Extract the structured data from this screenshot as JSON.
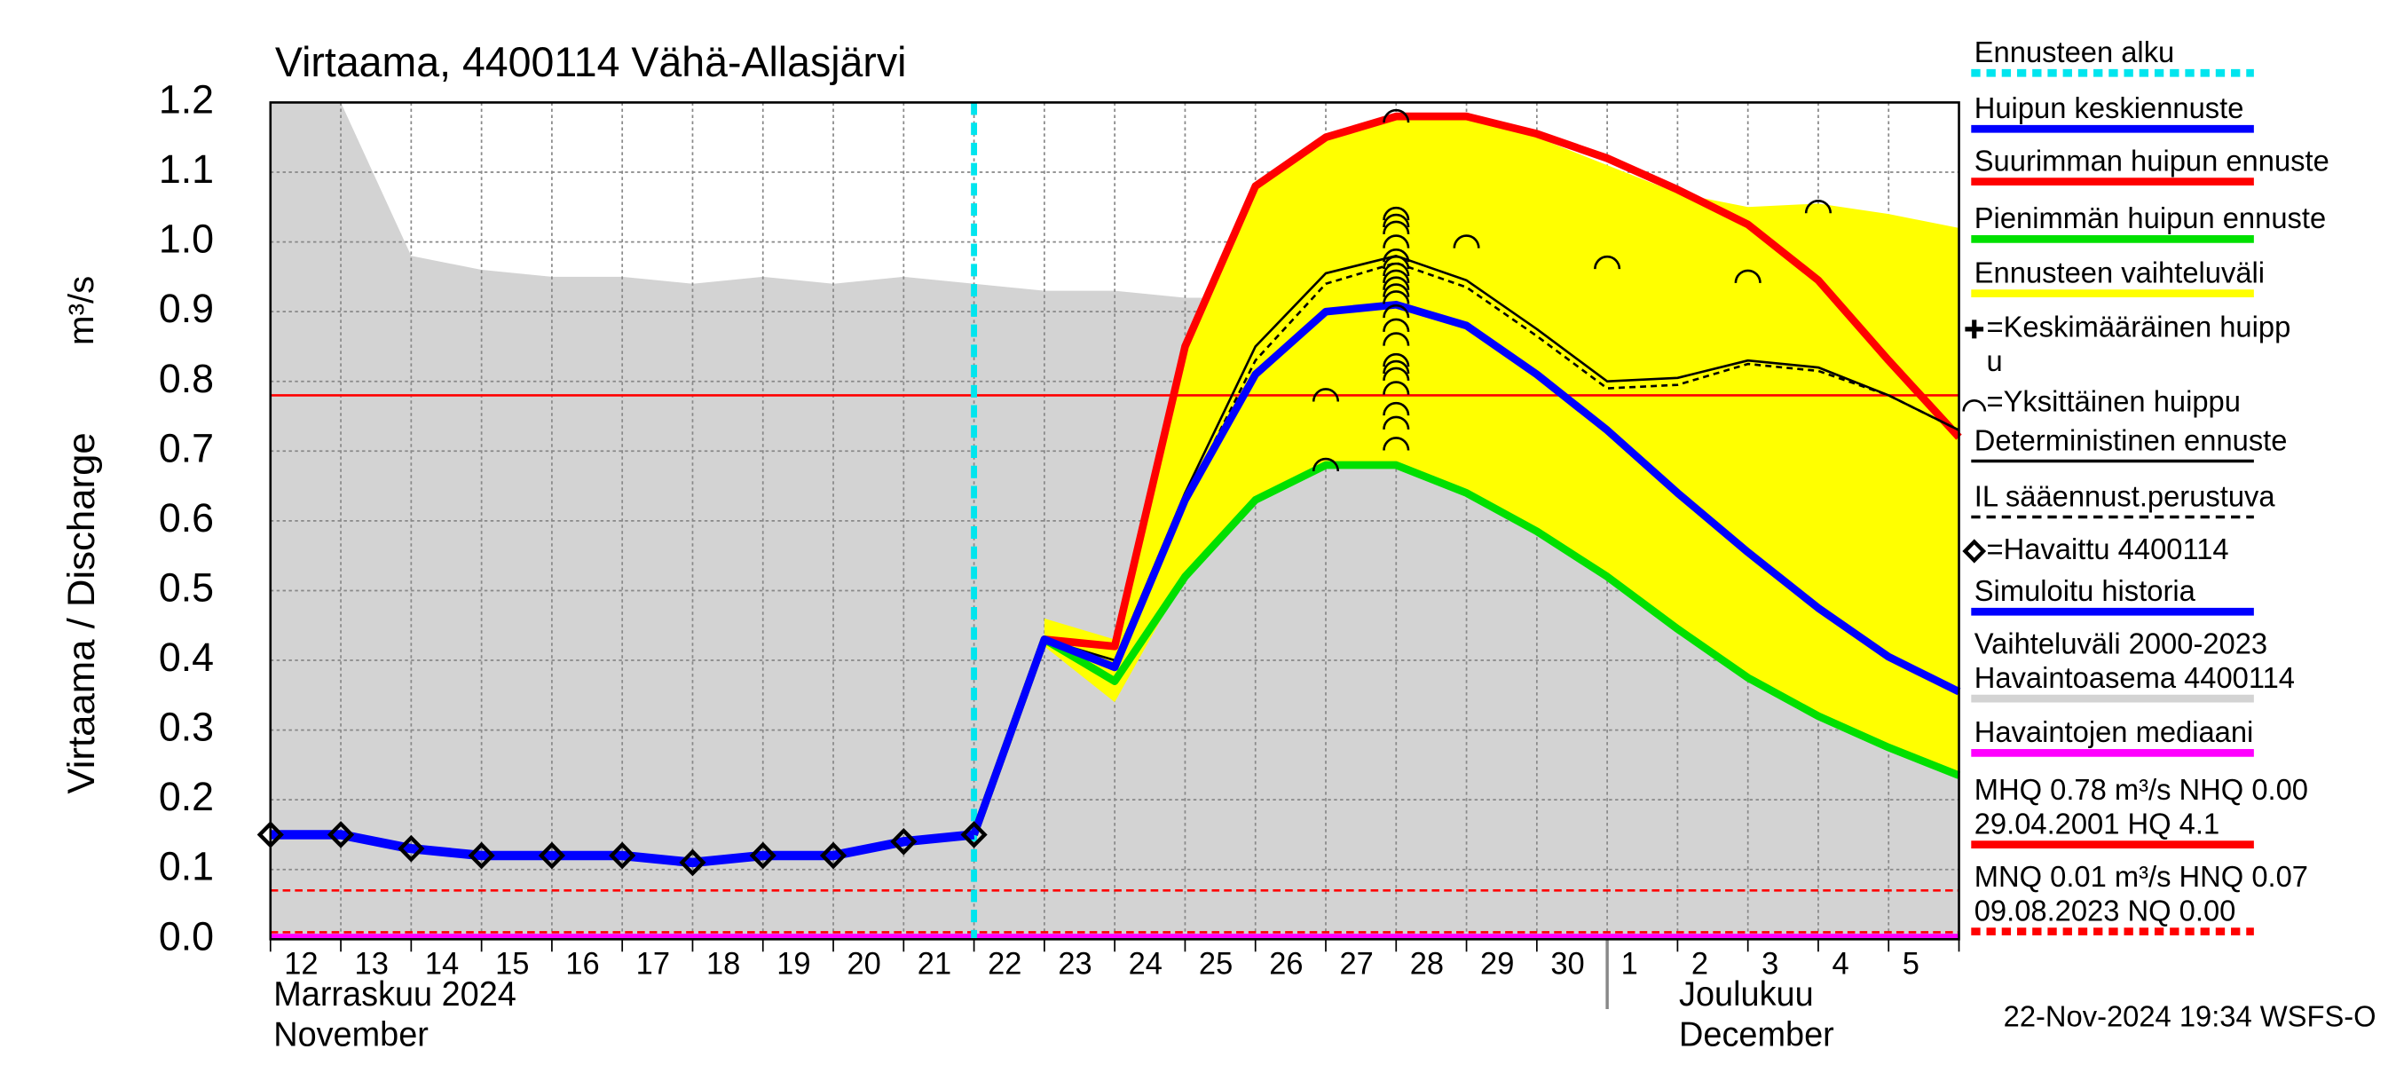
{
  "chart_data": {
    "type": "line",
    "title": "Virtaama, 4400114 Vähä-Allasjärvi",
    "y_label": "Virtaama / Discharge",
    "y_unit": "m³/s",
    "footer": "22-Nov-2024 19:34 WSFS-O",
    "categories": [
      "12",
      "13",
      "14",
      "15",
      "16",
      "17",
      "18",
      "19",
      "20",
      "21",
      "22",
      "23",
      "24",
      "25",
      "26",
      "27",
      "28",
      "29",
      "30",
      "1",
      "2",
      "3",
      "4",
      "5",
      null
    ],
    "month_labels": [
      {
        "category": "12",
        "lines": [
          "Marraskuu 2024",
          "November"
        ]
      },
      {
        "category": "1",
        "lines": [
          "Joulukuu",
          "December"
        ]
      }
    ],
    "forecast_start": "22",
    "ylim": [
      0,
      1.2
    ],
    "yticks": [
      {
        "value": 0,
        "label": "0.0"
      },
      0.1,
      0.2,
      0.3,
      0.4,
      0.5,
      0.6,
      0.7,
      0.8,
      0.9,
      {
        "value": 1,
        "label": "1.0"
      },
      1.1,
      1.2
    ],
    "grid": true,
    "history_range": {
      "color": "#d3d3d3",
      "upper": [
        1.2,
        1.2,
        0.98,
        0.96,
        0.95,
        0.95,
        0.94,
        0.95,
        0.94,
        0.95,
        0.94,
        0.93,
        0.93,
        0.92,
        0.92,
        0.91,
        0.9,
        0.88,
        0.86,
        0.85,
        0.84,
        0.83,
        0.82,
        0.815,
        0.81
      ],
      "lower": [
        0,
        0,
        0,
        0,
        0,
        0,
        0,
        0,
        0,
        0,
        0,
        0,
        0,
        0,
        0,
        0,
        0,
        0,
        0,
        0,
        0,
        0,
        0,
        0,
        0
      ]
    },
    "forecast_range": {
      "color": "#ffff00",
      "upper": [
        null,
        null,
        null,
        null,
        null,
        null,
        null,
        null,
        null,
        null,
        null,
        0.46,
        0.43,
        0.85,
        1.08,
        1.15,
        1.18,
        1.18,
        1.15,
        1.11,
        1.07,
        1.05,
        1.055,
        1.04,
        1.02
      ],
      "lower": [
        null,
        null,
        null,
        null,
        null,
        null,
        null,
        null,
        null,
        null,
        null,
        0.42,
        0.34,
        0.52,
        0.63,
        0.68,
        0.68,
        0.64,
        0.585,
        0.52,
        0.445,
        0.375,
        0.32,
        0.275,
        0.235
      ]
    },
    "reference_lines": [
      {
        "value": 0.78,
        "color": "#ff0000",
        "dashed": false
      },
      {
        "value": 0.07,
        "color": "#ff0000",
        "dashed": true
      },
      {
        "value": 0.01,
        "color": "#ff0000",
        "dashed": true
      },
      {
        "value": 0,
        "color": "#ff00ff",
        "dashed": false
      }
    ],
    "series": [
      {
        "name": "Suurimman huipun ennuste",
        "color": "#ff0000",
        "width": 5,
        "dashed": false,
        "values": [
          null,
          null,
          null,
          null,
          null,
          null,
          null,
          null,
          null,
          null,
          0.15,
          0.43,
          0.42,
          0.85,
          1.08,
          1.15,
          1.18,
          1.18,
          1.155,
          1.12,
          1.075,
          1.025,
          0.945,
          0.83,
          0.72
        ]
      },
      {
        "name": "Pienimmän huipun ennuste",
        "color": "#00e000",
        "width": 5,
        "dashed": false,
        "values": [
          null,
          null,
          null,
          null,
          null,
          null,
          null,
          null,
          null,
          null,
          0.15,
          0.43,
          0.37,
          0.52,
          0.63,
          0.68,
          0.68,
          0.64,
          0.585,
          0.52,
          0.445,
          0.375,
          0.32,
          0.275,
          0.235
        ]
      },
      {
        "name": "IL sääennust.perustuva",
        "color": "#000000",
        "width": 1.5,
        "dashed": true,
        "values": [
          null,
          null,
          null,
          null,
          null,
          null,
          null,
          null,
          null,
          null,
          0.15,
          0.43,
          0.39,
          0.63,
          0.83,
          0.94,
          0.97,
          0.935,
          0.865,
          0.79,
          0.795,
          0.825,
          0.815,
          0.78,
          0.73
        ]
      },
      {
        "name": "Deterministinen ennuste",
        "color": "#000000",
        "width": 1.5,
        "dashed": false,
        "values": [
          null,
          null,
          null,
          null,
          null,
          null,
          null,
          null,
          null,
          null,
          0.15,
          0.43,
          0.4,
          0.64,
          0.85,
          0.955,
          0.98,
          0.945,
          0.875,
          0.8,
          0.805,
          0.83,
          0.82,
          0.78,
          0.73
        ]
      },
      {
        "name": "Huipun keskiennuste",
        "color": "#0000ff",
        "width": 5,
        "dashed": false,
        "values": [
          null,
          null,
          null,
          null,
          null,
          null,
          null,
          null,
          null,
          null,
          0.15,
          0.43,
          0.39,
          0.63,
          0.81,
          0.9,
          0.91,
          0.88,
          0.81,
          0.73,
          0.64,
          0.555,
          0.475,
          0.405,
          0.355
        ]
      },
      {
        "name": "Havaittu 4400114",
        "color": "#0000ff",
        "width": 6,
        "dashed": false,
        "markers": true,
        "values": [
          0.15,
          0.15,
          0.13,
          0.12,
          0.12,
          0.12,
          0.11,
          0.12,
          0.12,
          0.14,
          0.15,
          null,
          null,
          null,
          null,
          null,
          null,
          null,
          null,
          null,
          null,
          null,
          null,
          null,
          null
        ]
      }
    ],
    "peaks": [
      {
        "category": "27",
        "values": [
          0.78,
          0.68
        ]
      },
      {
        "category": "28",
        "values": [
          1.18,
          1.04,
          1.03,
          1.02,
          1.0,
          0.98,
          0.97,
          0.96,
          0.95,
          0.94,
          0.93,
          0.92,
          0.9,
          0.88,
          0.86,
          0.83,
          0.82,
          0.81,
          0.79,
          0.76,
          0.74,
          0.71
        ]
      },
      {
        "category": "29",
        "values": [
          1.0
        ]
      },
      {
        "category": "1",
        "values": [
          0.97
        ]
      },
      {
        "category": "3",
        "values": [
          0.95
        ]
      },
      {
        "category": "4",
        "values": [
          1.05
        ]
      }
    ],
    "legend": [
      {
        "lines": [
          "Ennusteen alku"
        ],
        "symbol": "line",
        "color": "#00e5ee",
        "dashed": true
      },
      {
        "lines": [
          "Huipun keskiennuste"
        ],
        "symbol": "line",
        "color": "#0000ff",
        "dashed": false
      },
      {
        "lines": [
          "Suurimman huipun ennuste"
        ],
        "symbol": "line",
        "color": "#ff0000",
        "dashed": false
      },
      {
        "lines": [
          "Pienimmän huipun ennuste"
        ],
        "symbol": "line",
        "color": "#00e000",
        "dashed": false
      },
      {
        "lines": [
          "Ennusteen vaihteluväli"
        ],
        "symbol": "line",
        "color": "#ffff00",
        "dashed": false
      },
      {
        "lines": [
          "=Keskimääräinen huipp",
          "u"
        ],
        "symbol": "plus",
        "color": "#000000",
        "dashed": false
      },
      {
        "lines": [
          "=Yksittäinen huippu"
        ],
        "symbol": "arc",
        "color": "#000000",
        "dashed": false
      },
      {
        "lines": [
          "Deterministinen ennuste"
        ],
        "symbol": "line",
        "color": "#000000",
        "dashed": false
      },
      {
        "lines": [
          "IL sääennust.perustuva"
        ],
        "symbol": "line",
        "color": "#000000",
        "dashed": true
      },
      {
        "lines": [
          "=Havaittu 4400114"
        ],
        "symbol": "diamond",
        "color": "#000000",
        "dashed": false
      },
      {
        "lines": [
          "Simuloitu historia"
        ],
        "symbol": "line",
        "color": "#0000ff",
        "dashed": false
      },
      {
        "lines": [
          "Vaihteluväli 2000-2023",
          " Havaintoasema 4400114"
        ],
        "symbol": "line",
        "color": "#d3d3d3",
        "dashed": false
      },
      {
        "lines": [
          "Havaintojen mediaani"
        ],
        "symbol": "line",
        "color": "#ff00ff",
        "dashed": false
      },
      {
        "lines": [
          "MHQ 0.78 m³/s NHQ 0.00",
          "29.04.2001 HQ  4.1"
        ],
        "symbol": "line",
        "color": "#ff0000",
        "dashed": false
      },
      {
        "lines": [
          "MNQ 0.01 m³/s HNQ 0.07",
          "09.08.2023 NQ 0.00"
        ],
        "symbol": "line",
        "color": "#ff0000",
        "dashed": true
      }
    ]
  }
}
